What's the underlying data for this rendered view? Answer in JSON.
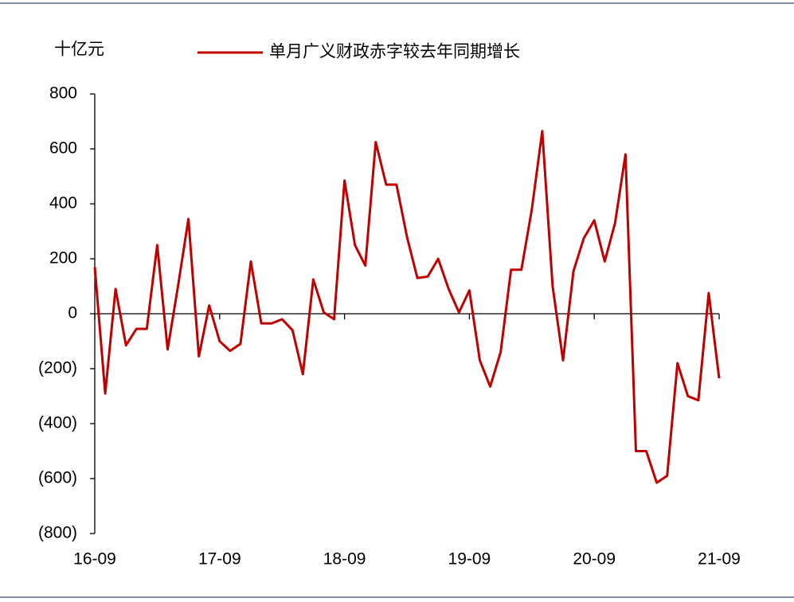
{
  "chart_data": {
    "type": "line",
    "unit_label": "十亿元",
    "categories": [
      "16-09",
      null,
      null,
      null,
      null,
      null,
      null,
      null,
      null,
      null,
      null,
      null,
      "17-09",
      null,
      null,
      null,
      null,
      null,
      null,
      null,
      null,
      null,
      null,
      null,
      "18-09",
      null,
      null,
      null,
      null,
      null,
      null,
      null,
      null,
      null,
      null,
      null,
      "19-09",
      null,
      null,
      null,
      null,
      null,
      null,
      null,
      null,
      null,
      null,
      null,
      "20-09",
      null,
      null,
      null,
      null,
      null,
      null,
      null,
      null,
      null,
      null,
      null,
      "21-09"
    ],
    "series": [
      {
        "name": "单月广义财政赤字较去年同期增长",
        "color": "#c00000",
        "values": [
          170,
          -290,
          90,
          -115,
          -55,
          -55,
          250,
          -130,
          100,
          345,
          -155,
          30,
          -100,
          -135,
          -110,
          190,
          -35,
          -35,
          -20,
          -60,
          -220,
          125,
          5,
          -20,
          485,
          250,
          175,
          625,
          470,
          470,
          280,
          130,
          135,
          200,
          90,
          5,
          85,
          -170,
          -265,
          -140,
          160,
          160,
          380,
          665,
          100,
          -170,
          155,
          275,
          340,
          190,
          330,
          580,
          -500,
          -500,
          -615,
          -590,
          -180,
          -300,
          -315,
          75,
          -235
        ]
      }
    ],
    "ylim": [
      -800,
      800
    ],
    "yticks": [
      {
        "value": -800,
        "label": "(800)"
      },
      {
        "value": -600,
        "label": "(600)"
      },
      {
        "value": -400,
        "label": "(400)"
      },
      {
        "value": -200,
        "label": "(200)"
      },
      0,
      200,
      400,
      600,
      800
    ],
    "grid": false
  }
}
